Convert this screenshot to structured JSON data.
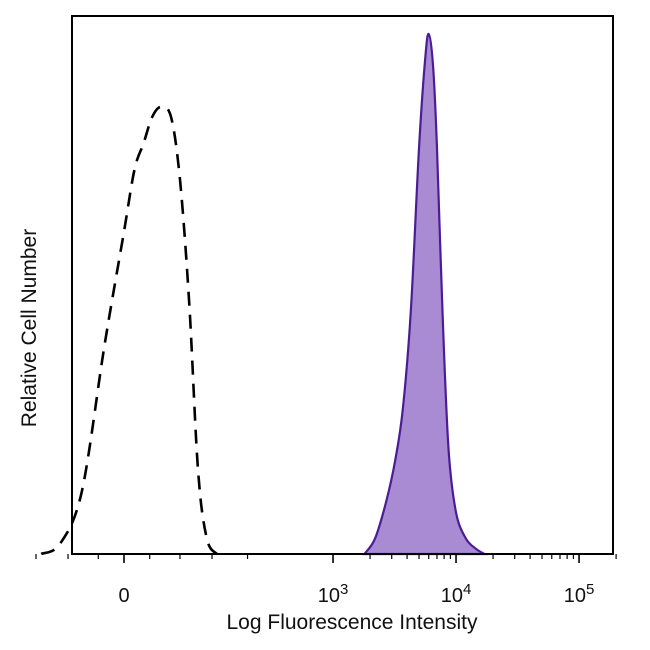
{
  "chart_data": {
    "type": "area",
    "title": "",
    "xlabel": "Log Fluorescence Intensity",
    "ylabel": "Relative Cell Number",
    "x_scale": "biexponential",
    "xlim": [
      -150,
      200000
    ],
    "ylim": [
      0,
      100
    ],
    "grid": false,
    "legend": "none",
    "x_ticks": [
      {
        "value": 0,
        "base": "0",
        "exp": ""
      },
      {
        "value": 1000,
        "base": "10",
        "exp": "3"
      },
      {
        "value": 10000,
        "base": "10",
        "exp": "4"
      },
      {
        "value": 100000,
        "base": "10",
        "exp": "5"
      }
    ],
    "minor_ticks": [
      -100,
      -50,
      -20,
      20,
      50,
      100,
      200,
      2000,
      3000,
      4000,
      5000,
      6000,
      7000,
      8000,
      9000,
      20000,
      30000,
      40000,
      50000,
      60000,
      70000,
      80000,
      90000,
      200000
    ],
    "series": [
      {
        "style": "dashed-outline",
        "color": "#000000",
        "x": [
          -90,
          -60,
          -35,
          -15,
          0,
          8,
          15,
          22,
          30,
          40,
          50,
          62,
          75,
          90,
          110
        ],
        "y": [
          0,
          2,
          12,
          40,
          62,
          74,
          79,
          84,
          86,
          84,
          72,
          48,
          16,
          3,
          0
        ]
      },
      {
        "style": "filled",
        "color": "#4b1d94",
        "fill": "#a98bd4",
        "x": [
          1800,
          2200,
          2700,
          3200,
          3700,
          4300,
          5000,
          5600,
          6000,
          6500,
          7000,
          7800,
          8700,
          10000,
          12000,
          14500,
          17000
        ],
        "y": [
          0,
          3,
          10,
          18,
          28,
          47,
          78,
          95,
          100,
          94,
          78,
          45,
          20,
          8,
          3,
          1,
          0
        ]
      }
    ]
  }
}
